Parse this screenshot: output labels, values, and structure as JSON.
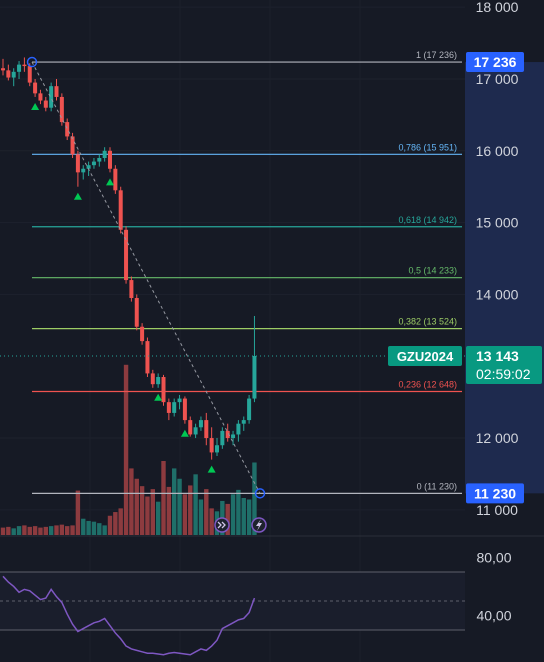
{
  "colors": {
    "background": "#161a25",
    "up": "#26a69a",
    "down": "#ef5350",
    "volume_up": "#1f6f69",
    "volume_down": "#8d3b3f",
    "rsi_line": "#7e57c2",
    "price_tag": "#089981",
    "highlight_tag": "#2962ff",
    "highlight_zone": "#1e2a4e"
  },
  "icons": [
    "replay-icon",
    "lightning-icon"
  ],
  "chart_data": {
    "type": "candlestick",
    "symbol": "GZU2024",
    "last_price": "13 143",
    "countdown": "02:59:02",
    "price_axis": {
      "ticks": [
        "18 000",
        "17 000",
        "16 000",
        "15 000",
        "14 000",
        "12 000",
        "11 000"
      ],
      "range": [
        10650,
        18100
      ],
      "highlighted": [
        "17 236",
        "11 230"
      ]
    },
    "rsi_axis": {
      "ticks": [
        "80,00",
        "40,00"
      ],
      "range": [
        8,
        92
      ],
      "band": [
        70,
        30
      ],
      "mid": 50
    },
    "fibonacci": [
      {
        "label": "1 (17 236)",
        "level": 1,
        "price": 17236,
        "color": "#b2b5be"
      },
      {
        "label": "0,786 (15 951)",
        "level": 0.786,
        "price": 15951,
        "color": "#64b5f6"
      },
      {
        "label": "0,618 (14 942)",
        "level": 0.618,
        "price": 14942,
        "color": "#26a69a"
      },
      {
        "label": "0,5 (14 233)",
        "level": 0.5,
        "price": 14233,
        "color": "#66bb6a"
      },
      {
        "label": "0,382 (13 524)",
        "level": 0.382,
        "price": 13524,
        "color": "#9ccc65"
      },
      {
        "label": "0,236 (12 648)",
        "level": 0.236,
        "price": 12648,
        "color": "#ef5350"
      },
      {
        "label": "0 (11 230)",
        "level": 0,
        "price": 11230,
        "color": "#b2b5be"
      }
    ],
    "trend_line": {
      "from": 17236,
      "to": 11230
    },
    "candles": [
      [
        17150,
        17280,
        17050,
        17120
      ],
      [
        17120,
        17200,
        16980,
        17020
      ],
      [
        17020,
        17150,
        16900,
        17100
      ],
      [
        17100,
        17250,
        17000,
        17200
      ],
      [
        17200,
        17300,
        17100,
        17180
      ],
      [
        17180,
        17220,
        16900,
        16950
      ],
      [
        16950,
        17000,
        16750,
        16800
      ],
      [
        16800,
        16850,
        16650,
        16700
      ],
      [
        16700,
        16750,
        16550,
        16600
      ],
      [
        16600,
        16950,
        16550,
        16900
      ],
      [
        16900,
        17000,
        16700,
        16750
      ],
      [
        16750,
        16800,
        16350,
        16400
      ],
      [
        16400,
        16450,
        16150,
        16200
      ],
      [
        16200,
        16250,
        15900,
        15950
      ],
      [
        15950,
        16000,
        15500,
        15700
      ],
      [
        15700,
        15800,
        15600,
        15750
      ],
      [
        15750,
        15850,
        15650,
        15800
      ],
      [
        15800,
        15900,
        15750,
        15850
      ],
      [
        15850,
        15950,
        15780,
        15900
      ],
      [
        15900,
        16050,
        15850,
        16000
      ],
      [
        16000,
        16050,
        15700,
        15750
      ],
      [
        15750,
        15800,
        15400,
        15450
      ],
      [
        15450,
        15500,
        14850,
        14900
      ],
      [
        14900,
        14950,
        14150,
        14200
      ],
      [
        14200,
        14250,
        13900,
        13950
      ],
      [
        13950,
        14000,
        13500,
        13550
      ],
      [
        13550,
        13600,
        13300,
        13350
      ],
      [
        13350,
        13400,
        12850,
        12900
      ],
      [
        12900,
        12950,
        12700,
        12750
      ],
      [
        12750,
        12900,
        12700,
        12850
      ],
      [
        12850,
        12880,
        12450,
        12500
      ],
      [
        12500,
        12550,
        12250,
        12350
      ],
      [
        12350,
        12550,
        12300,
        12500
      ],
      [
        12500,
        12600,
        12400,
        12550
      ],
      [
        12550,
        12580,
        12200,
        12250
      ],
      [
        12250,
        12300,
        12020,
        12050
      ],
      [
        12050,
        12200,
        12000,
        12150
      ],
      [
        12150,
        12300,
        12100,
        12250
      ],
      [
        12250,
        12350,
        11900,
        12000
      ],
      [
        12000,
        12150,
        11700,
        11800
      ],
      [
        11800,
        12000,
        11750,
        11900
      ],
      [
        11900,
        12150,
        11850,
        12100
      ],
      [
        12100,
        12200,
        11950,
        12000
      ],
      [
        12000,
        12100,
        11900,
        12050
      ],
      [
        12050,
        12250,
        11950,
        12200
      ],
      [
        12200,
        12300,
        12100,
        12250
      ],
      [
        12250,
        12600,
        12200,
        12550
      ],
      [
        12550,
        13700,
        12500,
        13143
      ]
    ],
    "volume": [
      10,
      11,
      9,
      12,
      13,
      11,
      12,
      10,
      11,
      12,
      13,
      14,
      12,
      13,
      60,
      22,
      19,
      18,
      16,
      13,
      26,
      31,
      36,
      230,
      90,
      76,
      66,
      52,
      62,
      45,
      100,
      65,
      90,
      76,
      55,
      67,
      82,
      48,
      62,
      36,
      32,
      46,
      42,
      55,
      61,
      50,
      48,
      98
    ],
    "rsi": [
      67,
      63,
      60,
      56,
      58,
      57,
      54,
      51,
      52,
      58,
      53,
      49,
      41,
      34,
      29,
      31,
      33,
      35,
      36,
      38,
      33,
      28,
      24,
      19,
      17,
      16,
      15,
      14,
      14,
      13.5,
      13,
      14,
      14.5,
      14,
      13.5,
      13,
      15,
      17,
      16,
      19,
      23,
      31,
      33,
      35,
      37,
      38,
      42,
      52
    ],
    "buy_markers": [
      6,
      14,
      20,
      29,
      34,
      39
    ]
  }
}
